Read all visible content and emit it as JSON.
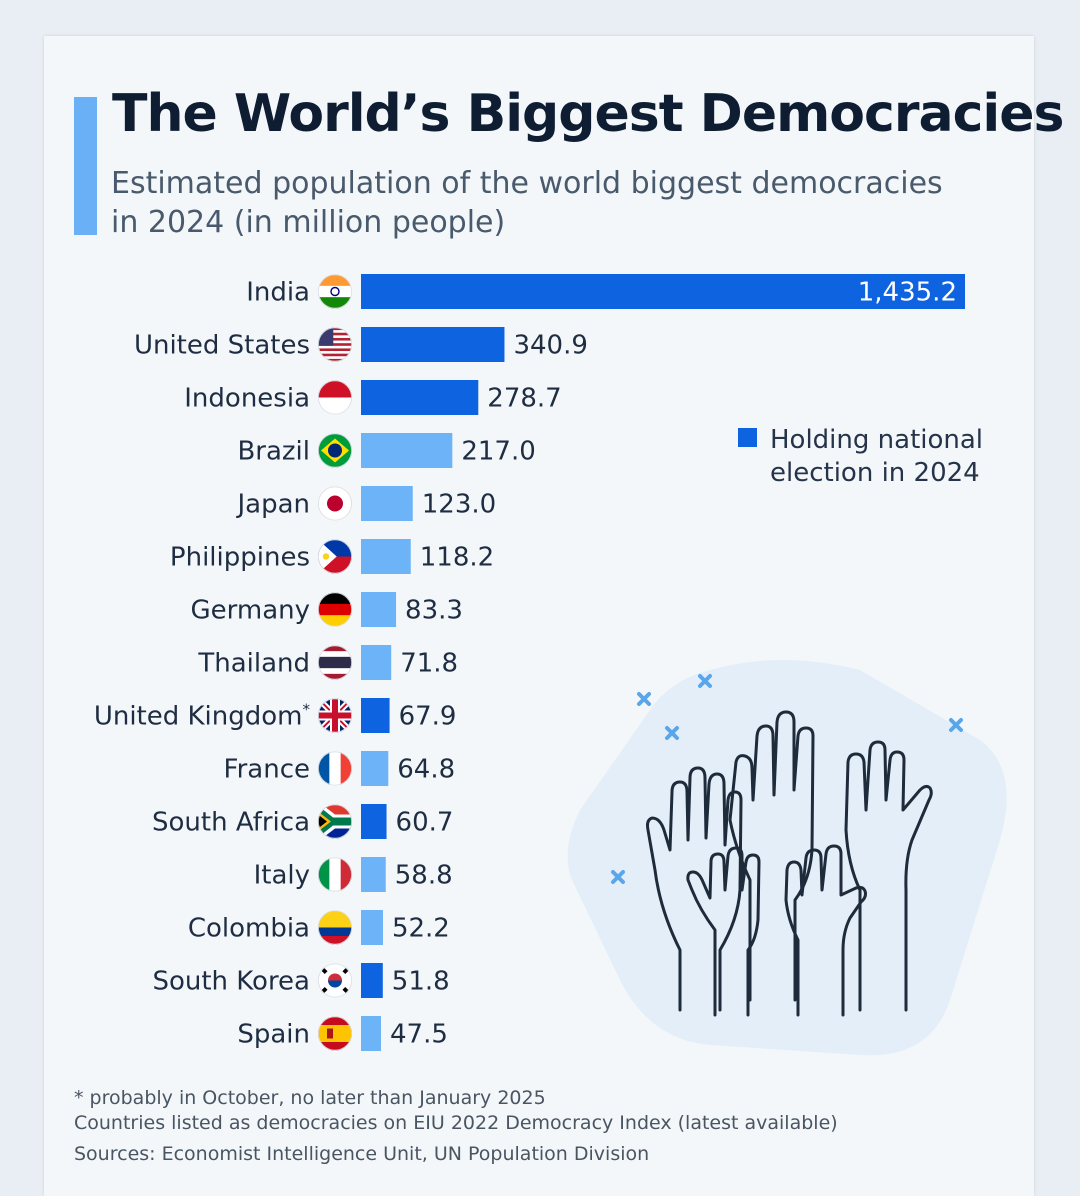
{
  "title": "The World’s Biggest Democracies",
  "subtitle": "Estimated population of the world biggest democracies in 2024 (in million people)",
  "legend": {
    "label": "Holding national election in 2024",
    "color": "#0d63e0"
  },
  "colors": {
    "election": "#0d63e0",
    "no_election": "#6cb4f7"
  },
  "footnotes": {
    "note1": "* probably in October, no later than January 2025",
    "note2": "Countries listed as democracies on EIU 2022 Democracy Index (latest available)",
    "sources": "Sources: Economist Intelligence Unit, UN Population Division"
  },
  "chart_data": {
    "type": "bar",
    "orientation": "horizontal",
    "categories": [
      "India",
      "United States",
      "Indonesia",
      "Brazil",
      "Japan",
      "Philippines",
      "Germany",
      "Thailand",
      "United Kingdom*",
      "France",
      "South Africa",
      "Italy",
      "Colombia",
      "South Korea",
      "Spain"
    ],
    "values": [
      1435.2,
      340.9,
      278.7,
      217.0,
      123.0,
      118.2,
      83.3,
      71.8,
      67.9,
      64.8,
      60.7,
      58.8,
      52.2,
      51.8,
      47.5
    ],
    "value_labels": [
      "1,435.2",
      "340.9",
      "278.7",
      "217.0",
      "123.0",
      "118.2",
      "83.3",
      "71.8",
      "67.9",
      "64.8",
      "60.7",
      "58.8",
      "52.2",
      "51.8",
      "47.5"
    ],
    "election_2024": [
      true,
      true,
      true,
      false,
      false,
      false,
      false,
      false,
      true,
      false,
      true,
      false,
      false,
      true,
      false
    ],
    "flag_icons": [
      "flag-india-icon",
      "flag-united-states-icon",
      "flag-indonesia-icon",
      "flag-brazil-icon",
      "flag-japan-icon",
      "flag-philippines-icon",
      "flag-germany-icon",
      "flag-thailand-icon",
      "flag-united-kingdom-icon",
      "flag-france-icon",
      "flag-south-africa-icon",
      "flag-italy-icon",
      "flag-colombia-icon",
      "flag-south-korea-icon",
      "flag-spain-icon"
    ],
    "legend_position": "right",
    "grid": false
  },
  "illustration": {
    "icon": "raised-hands-icon",
    "decor": "sparkle-x-icon"
  }
}
